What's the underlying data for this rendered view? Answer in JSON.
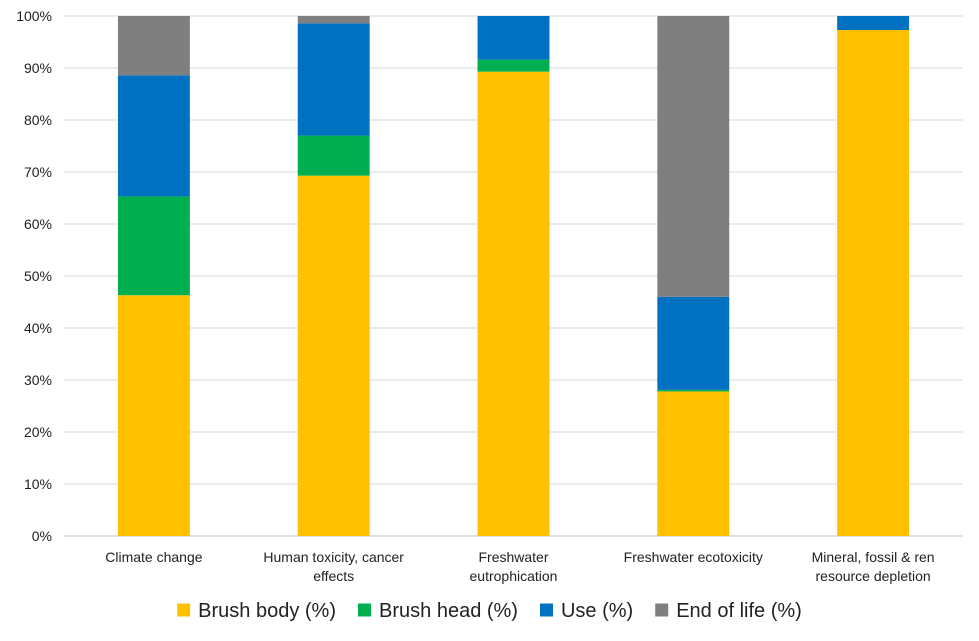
{
  "chart_data": {
    "type": "bar",
    "stacked": true,
    "categories": [
      [
        "Climate change"
      ],
      [
        "Human toxicity, cancer",
        "effects"
      ],
      [
        "Freshwater",
        "eutrophication"
      ],
      [
        "Freshwater ecotoxicity"
      ],
      [
        "Mineral, fossil & ren",
        "resource depletion"
      ]
    ],
    "series": [
      {
        "name": "Brush body (%)",
        "color": "#FFC000",
        "values": [
          46.3,
          69.3,
          89.3,
          27.8,
          97.3
        ]
      },
      {
        "name": "Brush head (%)",
        "color": "#00B050",
        "values": [
          19.0,
          7.7,
          2.3,
          0.3,
          0.0
        ]
      },
      {
        "name": "Use (%)",
        "color": "#0070C0",
        "values": [
          23.3,
          21.6,
          8.4,
          17.9,
          2.7
        ]
      },
      {
        "name": "End of life (%)",
        "color": "#7F7F7F",
        "values": [
          11.4,
          1.4,
          0.0,
          54.0,
          0.0
        ]
      }
    ],
    "yticks": [
      "0%",
      "10%",
      "20%",
      "30%",
      "40%",
      "50%",
      "60%",
      "70%",
      "80%",
      "90%",
      "100%"
    ],
    "ylim": [
      0,
      100
    ],
    "grid": true,
    "legend_position": "bottom",
    "xlabel": "",
    "ylabel": ""
  }
}
